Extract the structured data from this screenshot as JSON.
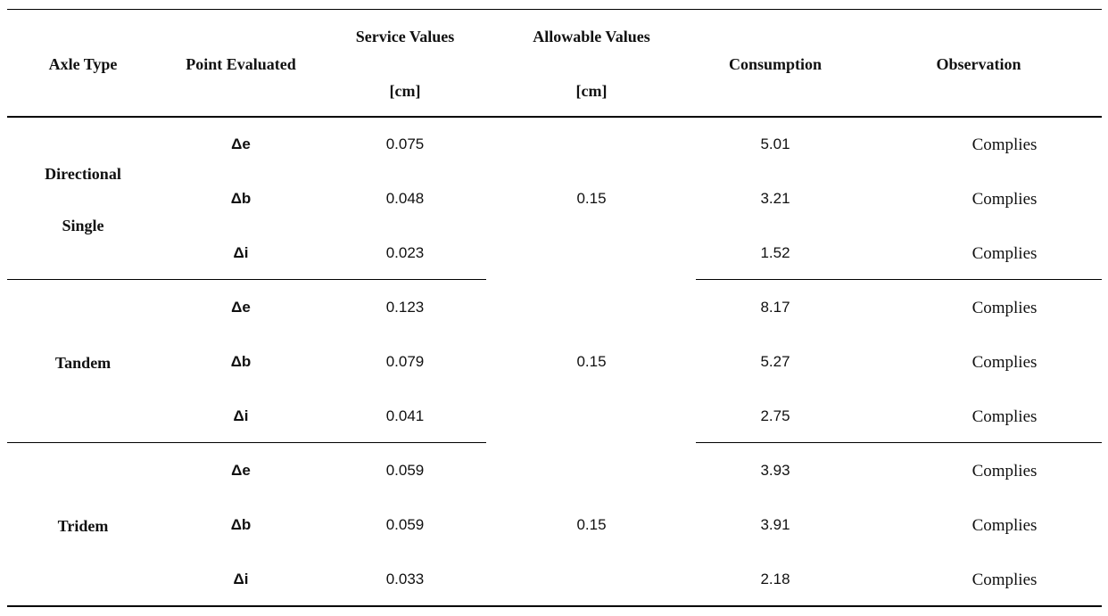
{
  "headers": {
    "axle_type": "Axle Type",
    "point_evaluated": "Point Evaluated",
    "service_values": "Service Values",
    "service_unit": "[cm]",
    "allowable_values": "Allowable Values",
    "allowable_unit": "[cm]",
    "consumption": "Consumption",
    "observation": "Observation"
  },
  "groups": [
    {
      "axle_line1": "Directional",
      "axle_line2": "Single",
      "allowable": "0.15",
      "rows": [
        {
          "point": "Δe",
          "service": "0.075",
          "consumption": "5.01",
          "observation": "Complies"
        },
        {
          "point": "Δb",
          "service": "0.048",
          "consumption": "3.21",
          "observation": "Complies"
        },
        {
          "point": "Δi",
          "service": "0.023",
          "consumption": "1.52",
          "observation": "Complies"
        }
      ]
    },
    {
      "axle_line1": "Tandem",
      "allowable": "0.15",
      "rows": [
        {
          "point": "Δe",
          "service": "0.123",
          "consumption": "8.17",
          "observation": "Complies"
        },
        {
          "point": "Δb",
          "service": "0.079",
          "consumption": "5.27",
          "observation": "Complies"
        },
        {
          "point": "Δi",
          "service": "0.041",
          "consumption": "2.75",
          "observation": "Complies"
        }
      ]
    },
    {
      "axle_line1": "Tridem",
      "allowable": "0.15",
      "rows": [
        {
          "point": "Δe",
          "service": "0.059",
          "consumption": "3.93",
          "observation": "Complies"
        },
        {
          "point": "Δb",
          "service": "0.059",
          "consumption": "3.91",
          "observation": "Complies"
        },
        {
          "point": "Δi",
          "service": "0.033",
          "consumption": "2.18",
          "observation": "Complies"
        }
      ]
    }
  ]
}
